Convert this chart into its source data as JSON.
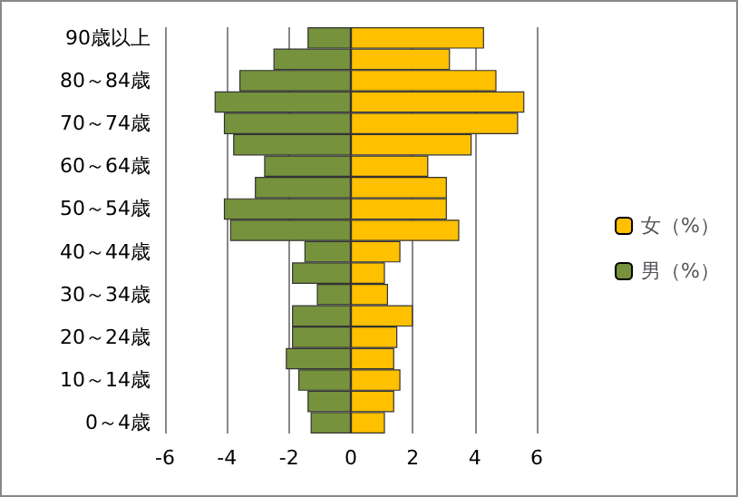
{
  "chart_data": {
    "type": "bar",
    "orientation": "horizontal",
    "categories": [
      "90歳以上",
      null,
      "80～84歳",
      null,
      "70～74歳",
      null,
      "60～64歳",
      null,
      "50～54歳",
      null,
      "40～44歳",
      null,
      "30～34歳",
      null,
      "20～24歳",
      null,
      "10～14歳",
      null,
      "0～4歳"
    ],
    "series": [
      {
        "name": "女（%）",
        "color": "#ffc000",
        "values": [
          4.3,
          3.2,
          4.7,
          5.6,
          5.4,
          3.9,
          2.5,
          3.1,
          3.1,
          3.5,
          1.6,
          1.1,
          1.2,
          2.0,
          1.5,
          1.4,
          1.6,
          1.4,
          1.1
        ]
      },
      {
        "name": "男（%）",
        "color": "#76923c",
        "values": [
          -1.4,
          -2.5,
          -3.6,
          -4.4,
          -4.1,
          -3.8,
          -2.8,
          -3.1,
          -4.1,
          -3.9,
          -1.5,
          -1.9,
          -1.1,
          -1.9,
          -1.9,
          -2.1,
          -1.7,
          -1.4,
          -1.3
        ]
      }
    ],
    "xlim": [
      -6,
      6
    ],
    "xticks": [
      -6,
      -4,
      -2,
      0,
      2,
      4,
      6
    ],
    "grid": "x",
    "legend": "right",
    "stacked": true
  }
}
